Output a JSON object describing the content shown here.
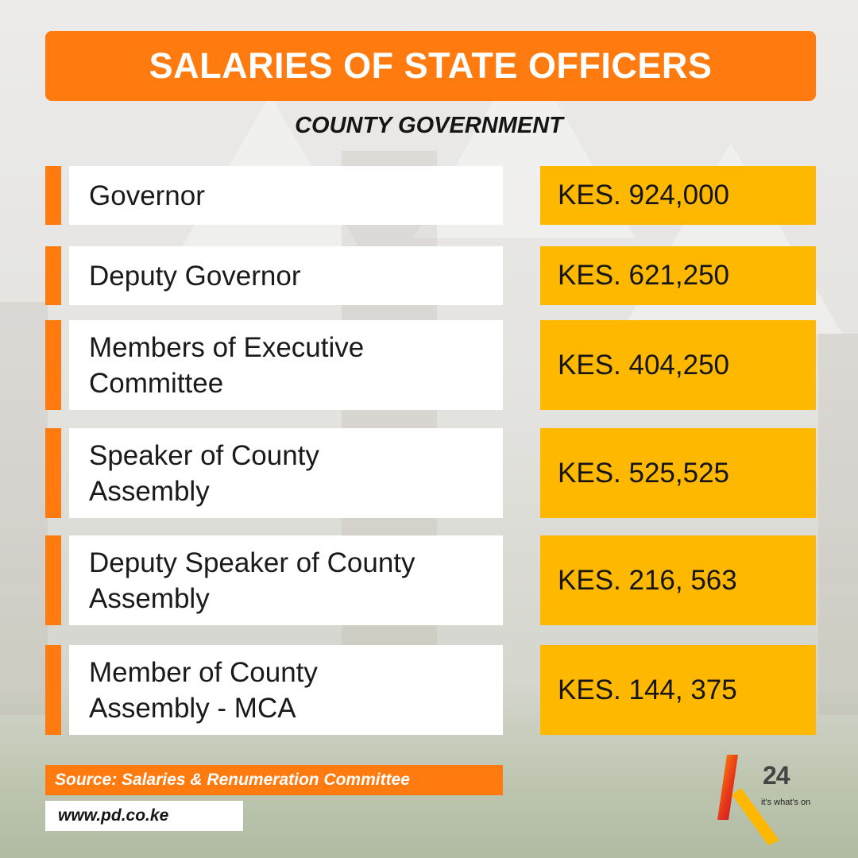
{
  "header": {
    "title": "SALARIES OF STATE OFFICERS",
    "subtitle": "COUNTY GOVERNMENT"
  },
  "rows": [
    {
      "label": "Governor",
      "value": "KES. 924,000"
    },
    {
      "label": "Deputy Governor",
      "value": "KES. 621,250"
    },
    {
      "label": "Members of Executive\nCommittee",
      "value": "KES. 404,250"
    },
    {
      "label": "Speaker of County\nAssembly",
      "value": "KES. 525,525"
    },
    {
      "label": "Deputy Speaker of County\nAssembly",
      "value": "KES. 216, 563"
    },
    {
      "label": "Member of County\nAssembly - MCA",
      "value": "KES. 144, 375"
    }
  ],
  "footer": {
    "source": "Source: Salaries & Renumeration Committee",
    "url": "www.pd.co.ke"
  },
  "logo": {
    "mark": "24",
    "tagline": "it's what's on",
    "icon": "k24-logo-icon"
  },
  "colors": {
    "orange": "#ff7b0f",
    "yellow": "#ffb800",
    "white": "#ffffff",
    "text": "#151515"
  }
}
